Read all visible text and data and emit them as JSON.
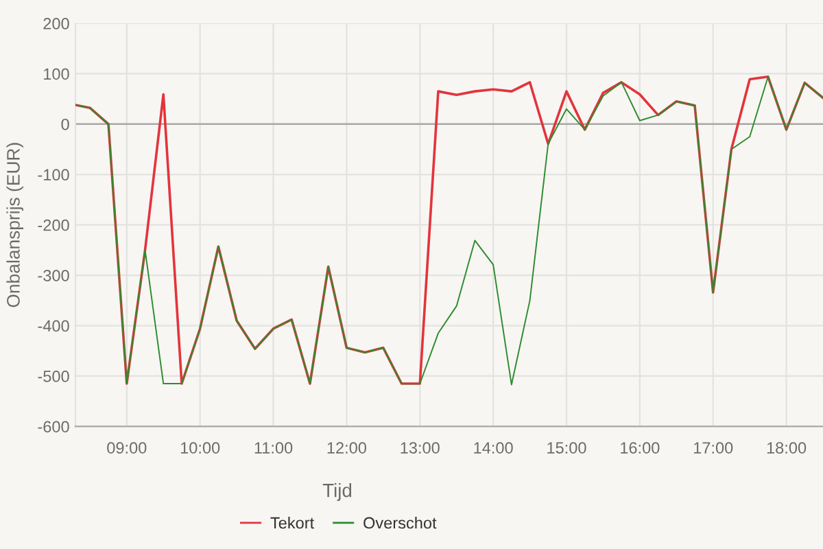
{
  "chart_data": {
    "type": "line",
    "xlabel": "Tijd",
    "ylabel": "Onbalansprijs (EUR)",
    "x": [
      8.3,
      8.5,
      8.75,
      9.0,
      9.25,
      9.5,
      9.75,
      10.0,
      10.25,
      10.5,
      10.75,
      11.0,
      11.25,
      11.5,
      11.75,
      12.0,
      12.25,
      12.5,
      12.75,
      13.0,
      13.25,
      13.5,
      13.75,
      14.0,
      14.25,
      14.5,
      14.75,
      15.0,
      15.25,
      15.5,
      15.75,
      16.0,
      16.25,
      16.5,
      16.75,
      17.0,
      17.25,
      17.5,
      17.75,
      18.0,
      18.25,
      18.5
    ],
    "series": [
      {
        "name": "Tekort",
        "color": "#e3343c",
        "values": [
          38,
          32,
          0,
          -515,
          -250,
          59,
          -515,
          -406,
          -243,
          -390,
          -446,
          -406,
          -388,
          -515,
          -283,
          -444,
          -453,
          -444,
          -515,
          -515,
          65,
          58,
          65,
          69,
          65,
          83,
          -39,
          65,
          -11,
          62,
          83,
          59,
          18,
          45,
          37,
          -334,
          -50,
          89,
          94,
          -11,
          82,
          52
        ]
      },
      {
        "name": "Overschot",
        "color": "#2e8b2e",
        "values": [
          38,
          32,
          0,
          -515,
          -250,
          -515,
          -515,
          -406,
          -243,
          -390,
          -446,
          -406,
          -388,
          -515,
          -283,
          -444,
          -453,
          -444,
          -515,
          -515,
          -415,
          -361,
          -231,
          -279,
          -517,
          -350,
          -39,
          30,
          -11,
          56,
          83,
          7,
          18,
          45,
          37,
          -334,
          -50,
          -25,
          94,
          -11,
          82,
          52
        ]
      }
    ],
    "xlim": [
      8.3,
      18.5
    ],
    "xticks": [
      {
        "value": 9,
        "label": "09:00"
      },
      {
        "value": 10,
        "label": "10:00"
      },
      {
        "value": 11,
        "label": "11:00"
      },
      {
        "value": 12,
        "label": "12:00"
      },
      {
        "value": 13,
        "label": "13:00"
      },
      {
        "value": 14,
        "label": "14:00"
      },
      {
        "value": 15,
        "label": "15:00"
      },
      {
        "value": 16,
        "label": "16:00"
      },
      {
        "value": 17,
        "label": "17:00"
      },
      {
        "value": 18,
        "label": "18:00"
      }
    ],
    "ylim": [
      -600,
      200
    ],
    "yticks": [
      -600,
      -500,
      -400,
      -300,
      -200,
      -100,
      0,
      100,
      200
    ],
    "ref_lines": [
      {
        "axis": "y",
        "value": 0,
        "color": "#a8a8a8"
      }
    ],
    "grid": true,
    "legend": "bottom",
    "marker": "none",
    "line_style": "solid"
  }
}
